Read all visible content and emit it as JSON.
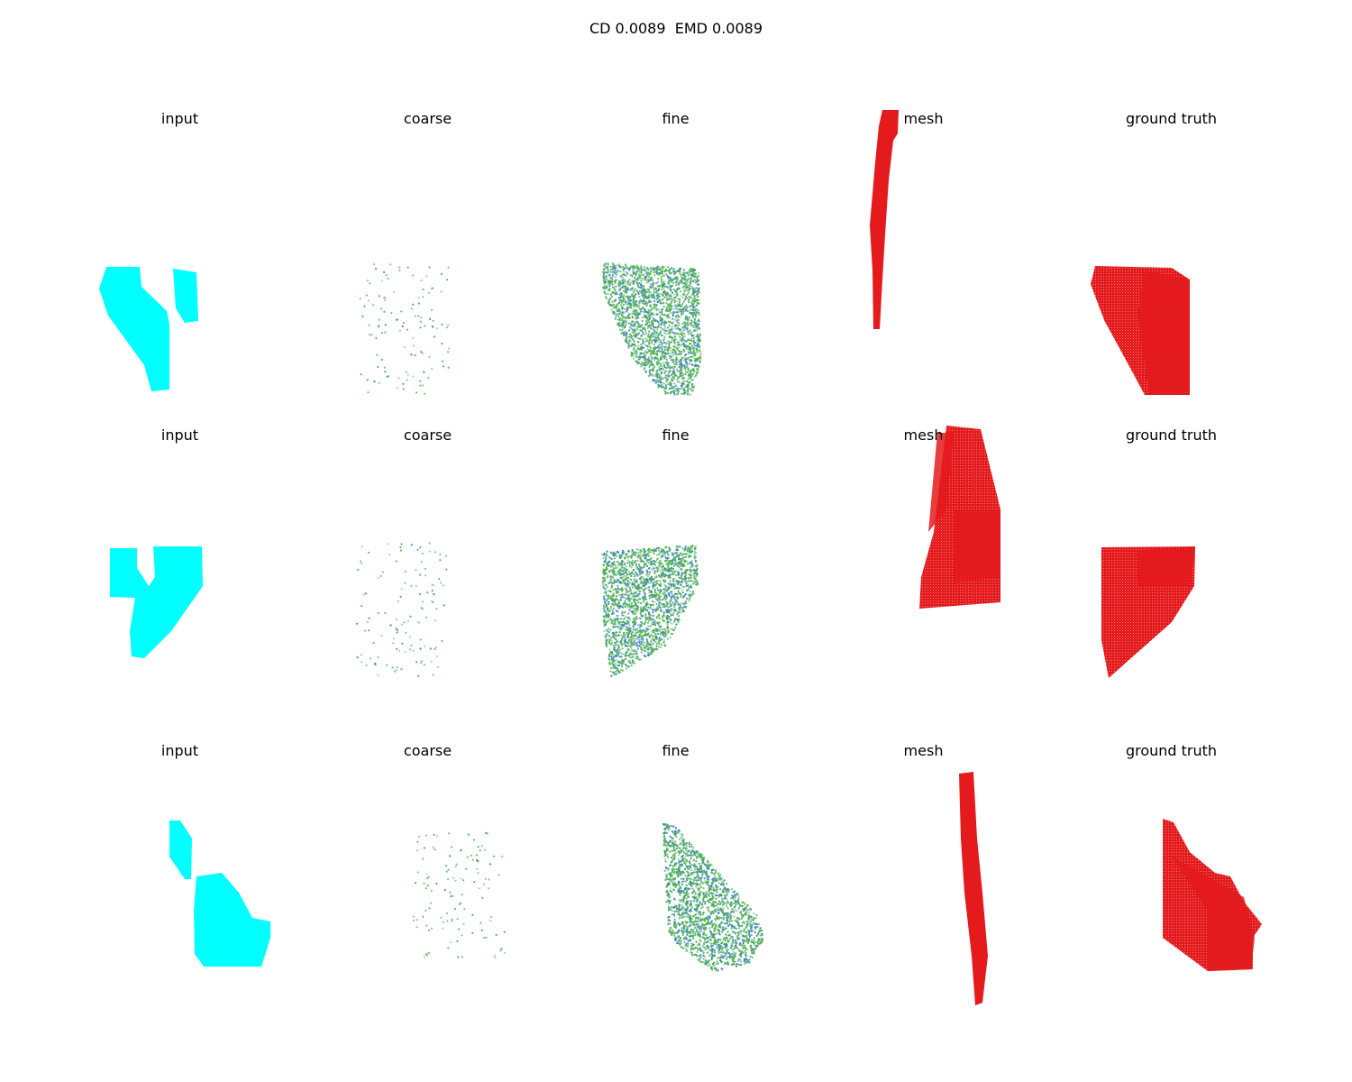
{
  "figure": {
    "title": "CD 0.0089  EMD 0.0089",
    "column_titles": [
      "input",
      "coarse",
      "fine",
      "mesh",
      "ground truth"
    ]
  },
  "panels": [
    [
      "input-cyan-fragment",
      "coarse-sparse-points",
      "fine-dense-points",
      "mesh-thin-strip",
      "gt-red-shape"
    ],
    [
      "input-cyan-fragment",
      "coarse-sparse-points",
      "fine-dense-points",
      "mesh-trapezoid",
      "gt-red-shape"
    ],
    [
      "input-cyan-fragment",
      "coarse-sparse-points",
      "fine-dense-points",
      "mesh-thin-strip",
      "gt-red-shape"
    ]
  ],
  "colors": {
    "input": "#00ffff",
    "prediction_green": "#4caf50",
    "prediction_blue": "#3a7bd5",
    "ground_truth": "#e41a1c"
  }
}
